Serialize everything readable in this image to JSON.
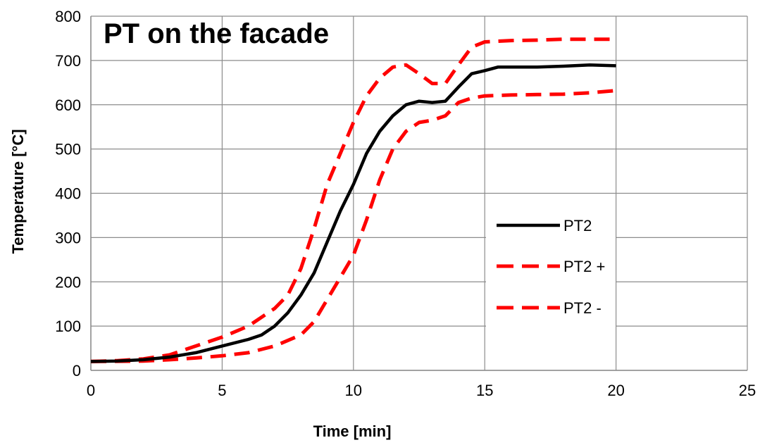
{
  "chart_data": {
    "type": "line",
    "title": "PT on the facade",
    "xlabel": "Time [min]",
    "ylabel": "Temperature [°C]",
    "xlim": [
      0,
      25
    ],
    "ylim": [
      0,
      800
    ],
    "xticks": [
      0,
      5,
      10,
      15,
      20,
      25
    ],
    "yticks": [
      0,
      100,
      200,
      300,
      400,
      500,
      600,
      700,
      800
    ],
    "grid": true,
    "legend_position": "right",
    "series": [
      {
        "name": "PT2",
        "color": "#000000",
        "style": "solid",
        "points": [
          [
            0,
            20
          ],
          [
            1,
            21
          ],
          [
            2,
            24
          ],
          [
            3,
            30
          ],
          [
            4,
            40
          ],
          [
            5,
            55
          ],
          [
            6,
            70
          ],
          [
            6.5,
            80
          ],
          [
            7,
            100
          ],
          [
            7.5,
            130
          ],
          [
            8,
            170
          ],
          [
            8.5,
            220
          ],
          [
            9,
            290
          ],
          [
            9.5,
            360
          ],
          [
            10,
            420
          ],
          [
            10.5,
            490
          ],
          [
            11,
            540
          ],
          [
            11.5,
            575
          ],
          [
            12,
            600
          ],
          [
            12.5,
            608
          ],
          [
            13,
            605
          ],
          [
            13.5,
            608
          ],
          [
            14,
            640
          ],
          [
            14.5,
            670
          ],
          [
            15,
            677
          ],
          [
            15.5,
            685
          ],
          [
            16,
            685
          ],
          [
            17,
            685
          ],
          [
            18,
            687
          ],
          [
            19,
            690
          ],
          [
            20,
            688
          ]
        ]
      },
      {
        "name": "PT2 +",
        "color": "#ff0000",
        "style": "dashed",
        "points": [
          [
            0,
            20
          ],
          [
            1,
            22
          ],
          [
            2,
            26
          ],
          [
            3,
            35
          ],
          [
            4,
            55
          ],
          [
            5,
            75
          ],
          [
            6,
            100
          ],
          [
            7,
            140
          ],
          [
            7.5,
            170
          ],
          [
            8,
            230
          ],
          [
            8.5,
            320
          ],
          [
            9,
            420
          ],
          [
            9.5,
            490
          ],
          [
            10,
            560
          ],
          [
            10.5,
            620
          ],
          [
            11,
            660
          ],
          [
            11.5,
            685
          ],
          [
            12,
            690
          ],
          [
            12.5,
            670
          ],
          [
            13,
            648
          ],
          [
            13.5,
            648
          ],
          [
            14,
            690
          ],
          [
            14.5,
            730
          ],
          [
            15,
            742
          ],
          [
            16,
            745
          ],
          [
            17,
            746
          ],
          [
            18,
            748
          ],
          [
            19,
            748
          ],
          [
            20,
            748
          ]
        ]
      },
      {
        "name": "PT2 -",
        "color": "#ff0000",
        "style": "dashed",
        "points": [
          [
            0,
            20
          ],
          [
            2,
            21
          ],
          [
            3,
            24
          ],
          [
            4,
            28
          ],
          [
            5,
            33
          ],
          [
            6,
            40
          ],
          [
            7,
            55
          ],
          [
            8,
            80
          ],
          [
            8.5,
            110
          ],
          [
            9,
            160
          ],
          [
            9.5,
            210
          ],
          [
            10,
            260
          ],
          [
            10.5,
            340
          ],
          [
            11,
            430
          ],
          [
            11.5,
            500
          ],
          [
            12,
            540
          ],
          [
            12.5,
            560
          ],
          [
            13,
            565
          ],
          [
            13.5,
            575
          ],
          [
            14,
            605
          ],
          [
            14.5,
            615
          ],
          [
            15,
            620
          ],
          [
            16,
            622
          ],
          [
            17,
            623
          ],
          [
            18,
            624
          ],
          [
            19,
            627
          ],
          [
            20,
            632
          ]
        ]
      }
    ]
  }
}
